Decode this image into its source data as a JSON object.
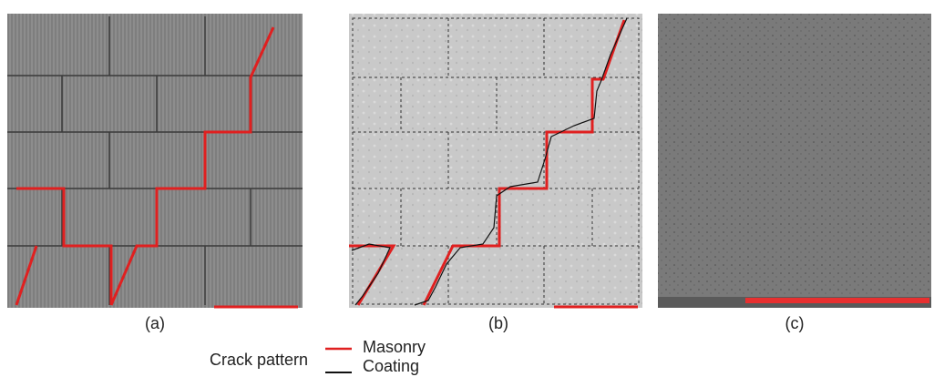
{
  "panels": [
    {
      "label": "(a)"
    },
    {
      "label": "(b)"
    },
    {
      "label": "(c)"
    }
  ],
  "legend": {
    "title": "Crack pattern",
    "items": [
      {
        "label": "Masonry"
      },
      {
        "label": "Coating"
      }
    ]
  }
}
